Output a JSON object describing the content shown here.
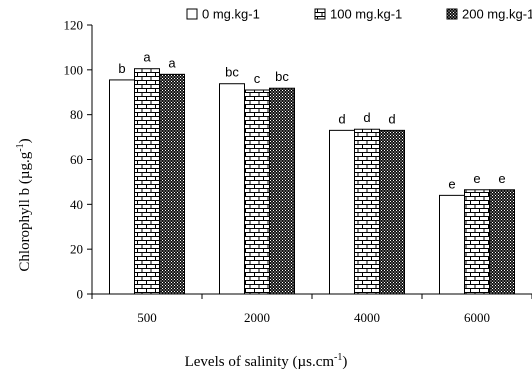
{
  "chart_data": {
    "type": "bar",
    "categories": [
      "500",
      "2000",
      "4000",
      "6000"
    ],
    "series": [
      {
        "name": "0 mg.kg-1",
        "values": [
          95.5,
          93.8,
          73.0,
          44.0
        ],
        "letters": [
          "b",
          "bc",
          "d",
          "e"
        ],
        "pattern": "plain"
      },
      {
        "name": "100 mg.kg-1",
        "values": [
          100.5,
          91.0,
          73.5,
          46.5
        ],
        "letters": [
          "a",
          "c",
          "d",
          "e"
        ],
        "pattern": "brick"
      },
      {
        "name": "200 mg.kg-1",
        "values": [
          98.0,
          91.8,
          73.0,
          46.5
        ],
        "letters": [
          "a",
          "bc",
          "d",
          "e"
        ],
        "pattern": "dots"
      }
    ],
    "xlabel": "Levels of salinity (µs.cm",
    "xlabel_sup": "-1",
    "xlabel_end": ")",
    "ylabel": "Chlorophyll b (µg.g",
    "ylabel_sup": "-1",
    "ylabel_end": ")",
    "ylim": [
      0,
      120
    ],
    "yticks": [
      0,
      20,
      40,
      60,
      80,
      100,
      120
    ],
    "grid": false,
    "legend_position": "top"
  }
}
